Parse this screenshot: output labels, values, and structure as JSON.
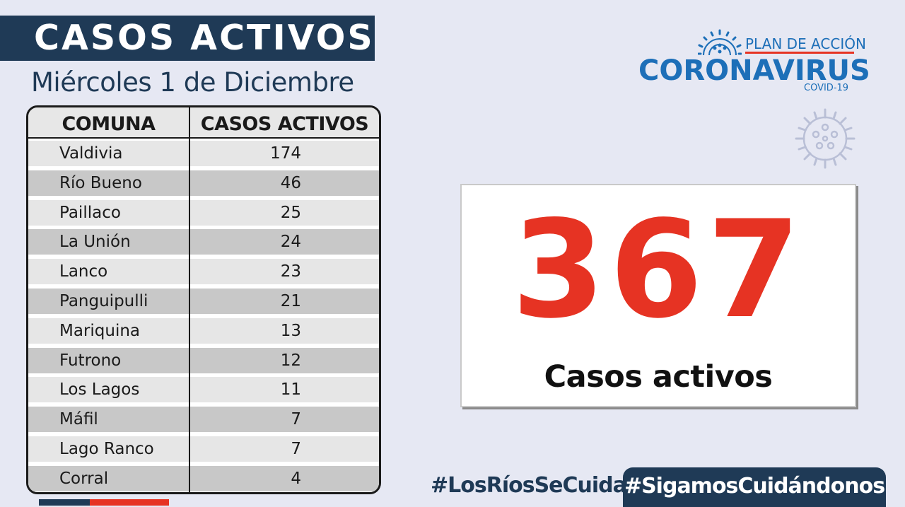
{
  "header": {
    "title": "CASOS ACTIVOS",
    "date": "Miércoles 1 de Diciembre"
  },
  "table": {
    "columns": [
      "COMUNA",
      "CASOS ACTIVOS"
    ],
    "rows": [
      {
        "comuna": "Valdivia",
        "casos": "174"
      },
      {
        "comuna": "Río Bueno",
        "casos": "46"
      },
      {
        "comuna": "Paillaco",
        "casos": "25"
      },
      {
        "comuna": "La Unión",
        "casos": "24"
      },
      {
        "comuna": "Lanco",
        "casos": "23"
      },
      {
        "comuna": "Panguipulli",
        "casos": "21"
      },
      {
        "comuna": "Mariquina",
        "casos": "13"
      },
      {
        "comuna": "Futrono",
        "casos": "12"
      },
      {
        "comuna": "Los Lagos",
        "casos": "11"
      },
      {
        "comuna": "Máfil",
        "casos": "7"
      },
      {
        "comuna": "Lago Ranco",
        "casos": "7"
      },
      {
        "comuna": "Corral",
        "casos": "4"
      }
    ]
  },
  "logo": {
    "plan": "PLAN DE ACCIÓN",
    "name": "CORONAVIRUS",
    "sub": "COVID-19"
  },
  "total": {
    "number": "367",
    "label": "Casos activos"
  },
  "hashtags": {
    "primary": "#LosRíosSeCuida",
    "secondary": "#SigamosCuidándonos"
  },
  "colors": {
    "navy": "#1f3a56",
    "red": "#e63323",
    "blue": "#1d6fb8",
    "background": "#e6e8f3",
    "row_light": "#e6e6e6",
    "row_dark": "#c8c8c8"
  },
  "icons": [
    "coronavirus-logo-icon",
    "virus-watermark-icon"
  ]
}
